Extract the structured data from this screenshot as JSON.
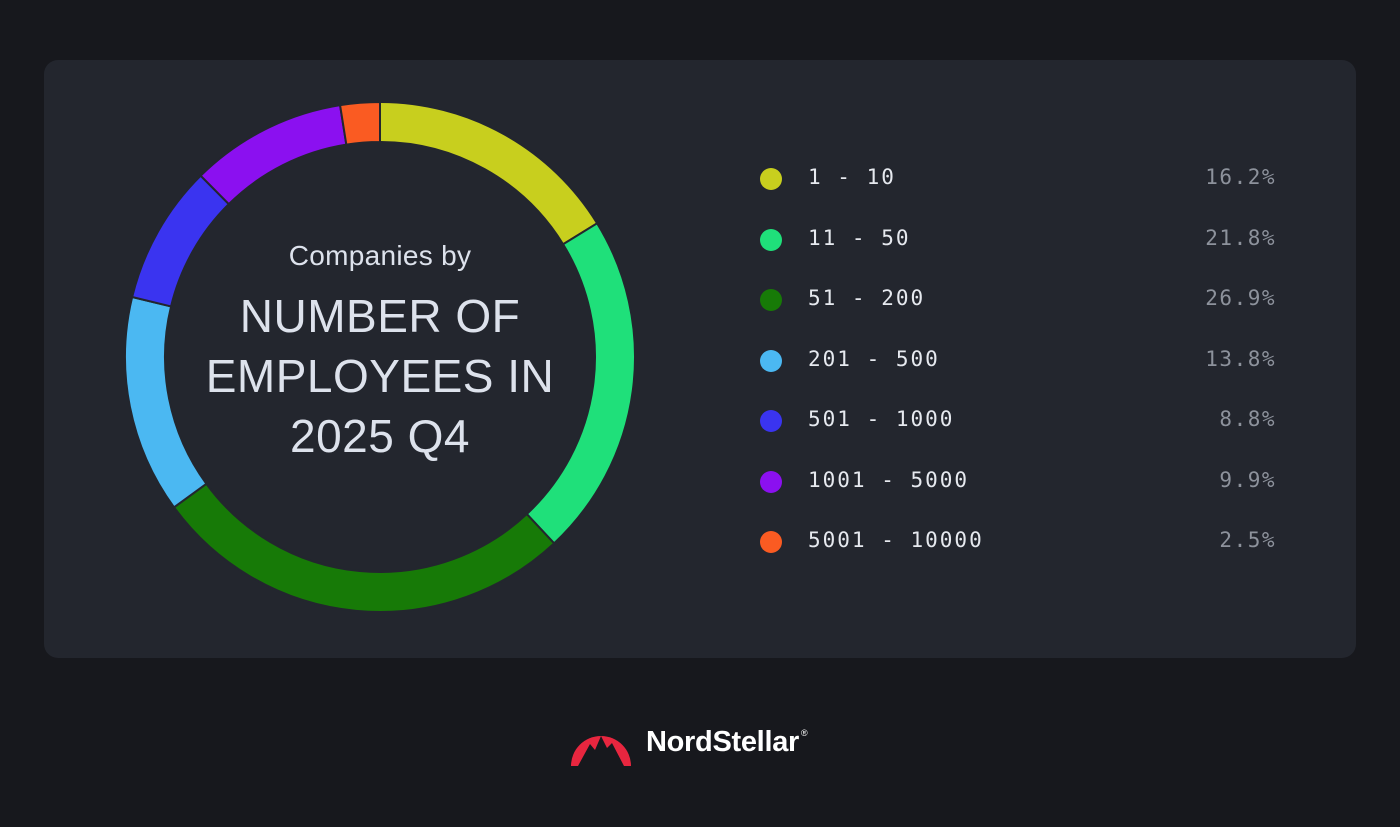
{
  "chart_data": {
    "type": "pie",
    "donut": true,
    "title_line1": "Companies by",
    "title_line2": "NUMBER OF EMPLOYEES IN 2025 Q4",
    "categories": [
      "1 - 10",
      "11 - 50",
      "51 - 200",
      "201 - 500",
      "501 - 1000",
      "1001 - 5000",
      "5001 - 10000"
    ],
    "values": [
      16.2,
      21.8,
      26.9,
      13.8,
      8.8,
      9.9,
      2.5
    ],
    "value_labels": [
      "16.2%",
      "21.8%",
      "26.9%",
      "13.8%",
      "8.8%",
      "9.9%",
      "2.5%"
    ],
    "colors": [
      "#c8cf1e",
      "#1fe07a",
      "#177a07",
      "#4bb8f2",
      "#3a34f0",
      "#8b10f0",
      "#fa5b22"
    ],
    "legend_position": "right"
  },
  "brand": {
    "name": "NordStellar",
    "reg_mark": "®",
    "logo_color": "#e8263f",
    "icon": "nordstellar-logo-icon"
  }
}
